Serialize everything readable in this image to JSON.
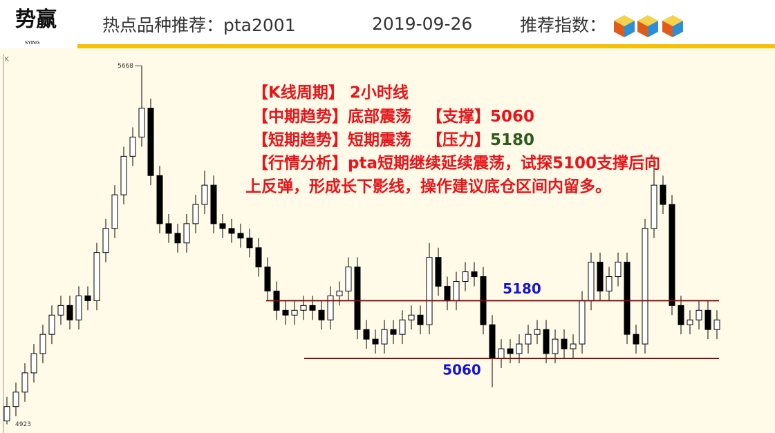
{
  "header": {
    "logo": "势赢",
    "logo_sub": "SYING",
    "title": "热点品种推荐：pta2001",
    "date": "2019-09-26",
    "rating_label": "推荐指数："
  },
  "chart_data": {
    "type": "candlestick",
    "axis_label": "K",
    "ylim": [
      4905,
      5690
    ],
    "open": [
      4930,
      4960,
      4990,
      5030,
      5070,
      5110,
      5150,
      5170,
      5140,
      5190,
      5180,
      5280,
      5330,
      5400,
      5480,
      5520,
      5580,
      5440,
      5340,
      5320,
      5300,
      5340,
      5380,
      5420,
      5340,
      5330,
      5320,
      5310,
      5290,
      5250,
      5200,
      5160,
      5150,
      5160,
      5170,
      5160,
      5140,
      5190,
      5200,
      5250,
      5120,
      5100,
      5090,
      5120,
      5110,
      5140,
      5150,
      5130,
      5270,
      5210,
      5180,
      5220,
      5240,
      5230,
      5130,
      5060,
      5080,
      5070,
      5090,
      5110,
      5120,
      5070,
      5100,
      5080,
      5090,
      5180,
      5260,
      5200,
      5230,
      5260,
      5110,
      5090,
      5330,
      5420,
      5380,
      5170,
      5130,
      5140,
      5160,
      5120
    ],
    "high": [
      4980,
      5010,
      5050,
      5090,
      5130,
      5170,
      5190,
      5190,
      5210,
      5210,
      5300,
      5350,
      5420,
      5500,
      5540,
      5668,
      5600,
      5460,
      5360,
      5340,
      5360,
      5400,
      5450,
      5440,
      5360,
      5350,
      5340,
      5330,
      5310,
      5270,
      5220,
      5180,
      5180,
      5190,
      5190,
      5180,
      5210,
      5220,
      5270,
      5270,
      5140,
      5120,
      5140,
      5140,
      5160,
      5170,
      5170,
      5300,
      5290,
      5230,
      5240,
      5260,
      5260,
      5250,
      5150,
      5100,
      5100,
      5110,
      5130,
      5140,
      5140,
      5120,
      5120,
      5110,
      5200,
      5280,
      5280,
      5250,
      5280,
      5280,
      5130,
      5350,
      5480,
      5440,
      5400,
      5190,
      5160,
      5180,
      5180,
      5160
    ],
    "low": [
      4923,
      4940,
      4970,
      5010,
      5050,
      5090,
      5130,
      5120,
      5120,
      5160,
      5160,
      5260,
      5310,
      5380,
      5460,
      5500,
      5420,
      5320,
      5300,
      5280,
      5280,
      5320,
      5360,
      5320,
      5310,
      5300,
      5290,
      5270,
      5230,
      5180,
      5140,
      5130,
      5130,
      5140,
      5140,
      5120,
      5120,
      5170,
      5180,
      5100,
      5080,
      5070,
      5070,
      5090,
      5090,
      5120,
      5110,
      5110,
      5190,
      5160,
      5160,
      5200,
      5210,
      5110,
      5000,
      5040,
      5050,
      5050,
      5070,
      5090,
      5050,
      5050,
      5060,
      5060,
      5070,
      5160,
      5180,
      5180,
      5210,
      5090,
      5070,
      5070,
      5310,
      5360,
      5150,
      5110,
      5110,
      5120,
      5100,
      5100
    ],
    "close": [
      4960,
      4990,
      5030,
      5070,
      5110,
      5150,
      5170,
      5140,
      5190,
      5180,
      5280,
      5330,
      5400,
      5480,
      5520,
      5580,
      5440,
      5340,
      5320,
      5300,
      5340,
      5380,
      5420,
      5340,
      5330,
      5320,
      5310,
      5290,
      5250,
      5200,
      5160,
      5150,
      5160,
      5170,
      5160,
      5140,
      5190,
      5200,
      5250,
      5120,
      5100,
      5090,
      5120,
      5110,
      5140,
      5150,
      5130,
      5270,
      5210,
      5180,
      5220,
      5240,
      5230,
      5130,
      5060,
      5080,
      5070,
      5090,
      5110,
      5120,
      5070,
      5100,
      5080,
      5090,
      5180,
      5260,
      5200,
      5230,
      5260,
      5110,
      5090,
      5330,
      5420,
      5380,
      5170,
      5130,
      5140,
      5160,
      5120,
      5140
    ],
    "resistance": 5180,
    "support": 5060,
    "analysis": {
      "period": "【K线周期】 2小时线",
      "mid_trend": "【中期趋势】底部震荡",
      "support_tag": "【支撑】",
      "short_trend": "【短期趋势】短期震荡",
      "pressure_tag": "【压力】",
      "comment_1": "【行情分析】pta短期继续延续震荡，试探5100支撑后向",
      "comment_2": "上反弹，形成长下影线，操作建议底仓区间内留多。"
    }
  }
}
